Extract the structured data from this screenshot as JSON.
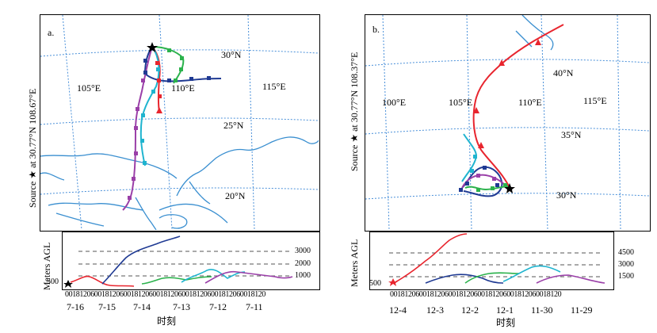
{
  "panels": [
    {
      "id": "a",
      "panel_label": "a.",
      "source_label": "Source ★ at 30.77°N 108.67°E",
      "lon_labels": [
        "105°E",
        "110°E",
        "115°E"
      ],
      "lat_labels": [
        "30°N",
        "25°N",
        "20°N"
      ],
      "height_axis_label": "Meters AGL",
      "height_levels": [
        "3000",
        "2000",
        "1000"
      ],
      "height_base": "500",
      "time_ticks": "0018120600181206001812060018120600181206001812060018120",
      "date_labels": [
        "7-16",
        "7-15",
        "7-14",
        "7-13",
        "7-12",
        "7-11"
      ],
      "time_axis_label": "时刻"
    },
    {
      "id": "b",
      "panel_label": "b.",
      "source_label": "Source ★ at 30.77°N 108.37°E",
      "lon_labels": [
        "100°E",
        "105°E",
        "110°E",
        "115°E"
      ],
      "lat_labels": [
        "40°N",
        "35°N",
        "30°N"
      ],
      "height_axis_label": "Meters AGL",
      "height_levels": [
        "4500",
        "3000",
        "1500"
      ],
      "height_base": "500",
      "time_ticks": "00181206001812060018120600181206001812060018120",
      "date_labels": [
        "12-4",
        "12-3",
        "12-2",
        "12-1",
        "11-30",
        "11-29"
      ],
      "time_axis_label": "时刻"
    }
  ],
  "trajectory_colors": {
    "red": "#e8252e",
    "navy": "#1f3a93",
    "green": "#2bb24c",
    "cyan": "#1fb4cf",
    "purple": "#9a3fa8"
  },
  "grid_color": "#4a90d9",
  "coast_color": "#3a8fd0"
}
